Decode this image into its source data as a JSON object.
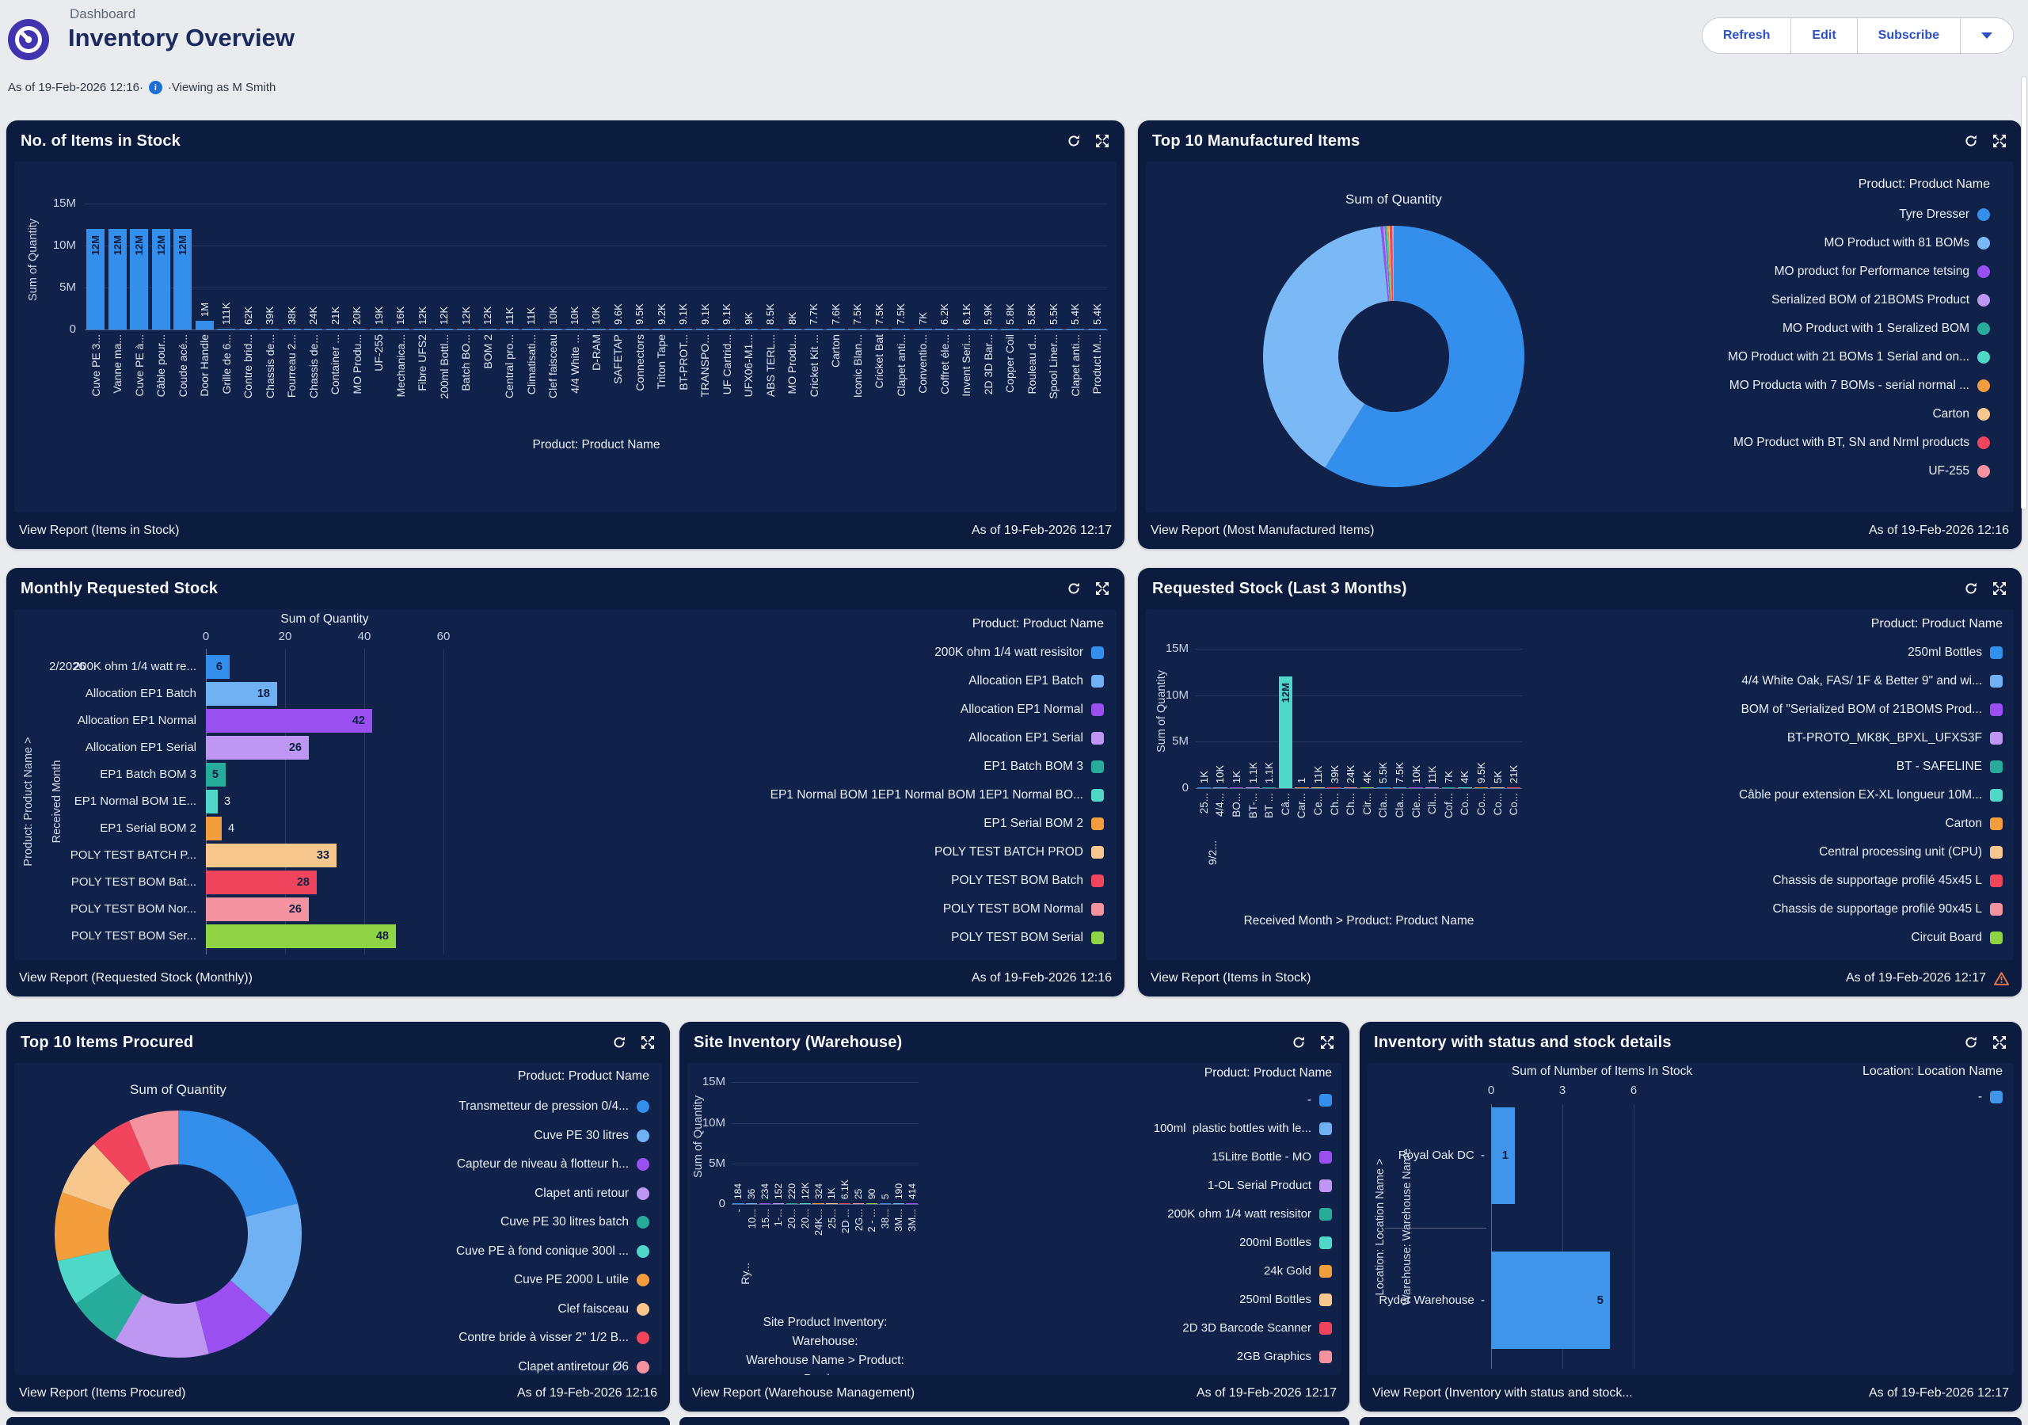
{
  "page": {
    "breadcrumb": "Dashboard",
    "title": "Inventory Overview",
    "as_of": "As of 19-Feb-2026 12:16·",
    "viewing_as": "·Viewing as M Smith",
    "buttons": {
      "refresh": "Refresh",
      "edit": "Edit",
      "subscribe": "Subscribe"
    }
  },
  "panels": [
    {
      "title": "No. of Items in Stock",
      "footer_left": "View Report (Items in Stock)",
      "footer_right": "As of 19-Feb-2026 12:17"
    },
    {
      "title": "Top 10 Manufactured Items",
      "footer_left": "View Report (Most Manufactured Items)",
      "footer_right": "As of 19-Feb-2026 12:16"
    },
    {
      "title": "Monthly Requested Stock",
      "footer_left": "View Report (Requested Stock (Monthly))",
      "footer_right": "As of 19-Feb-2026 12:16"
    },
    {
      "title": "Requested Stock (Last 3 Months)",
      "footer_left": "View Report (Items in Stock)",
      "footer_right": "As of 19-Feb-2026 12:17"
    },
    {
      "title": "Top 10 Items Procured",
      "footer_left": "View Report (Items Procured)",
      "footer_right": "As of 19-Feb-2026 12:16"
    },
    {
      "title": "Site Inventory (Warehouse)",
      "footer_left": "View Report (Warehouse Management)",
      "footer_right": "As of 19-Feb-2026 12:17"
    },
    {
      "title": "Inventory with status and stock details",
      "footer_left": "View Report (Inventory with status and stock...",
      "footer_right": "As of 19-Feb-2026 12:17"
    }
  ],
  "chart_data": [
    {
      "type": "bar",
      "orientation": "vertical",
      "title": "No. of Items in Stock",
      "ylabel": "Sum of Quantity",
      "xlabel": "Product: Product Name",
      "yticks": [
        [
          0,
          "0"
        ],
        [
          5000000,
          "5M"
        ],
        [
          10000000,
          "10M"
        ],
        [
          15000000,
          "15M"
        ]
      ],
      "ylim": [
        0,
        16200000
      ],
      "bar_color": "#338feb",
      "categories": [
        "Cuve PE 3...",
        "Vanne ma...",
        "Cuve PE à...",
        "Câble pour...",
        "Coude acé...",
        "Door Handle",
        "Grille de 6...",
        "Contre brid...",
        "Chassis de...",
        "Fourreau 2...",
        "Chassis de...",
        "Container ...",
        "MO Produ...",
        "UF-255",
        "Mechanica...",
        "Fibre UFS2",
        "200ml Bottl...",
        "Batch BO...",
        "BOM 2",
        "Central pro...",
        "Climatisati...",
        "Clef faisceau",
        "4/4 White ...",
        "D-RAM",
        "SAFETAP",
        "Connectors",
        "Triton Tape",
        "BT-PROT...",
        "TRANSPO...",
        "UF Cartrid...",
        "UFX06-M1...",
        "ABS TERL...",
        "MO Produ...",
        "Cricket Kit ...",
        "Carton",
        "Iconic Blan...",
        "Cricket Bat",
        "Clapet anti...",
        "Conventio...",
        "Coffret éle...",
        "Invent Seri...",
        "2D 3D Bar...",
        "Copper Coil",
        "Rouleau d...",
        "Spool Liner...",
        "Clapet anti...",
        "Product M..."
      ],
      "values": [
        12000000,
        12000000,
        12000000,
        12000000,
        12000000,
        1000000,
        111000,
        62000,
        39000,
        38000,
        24000,
        21000,
        20000,
        19000,
        16000,
        12000,
        12000,
        12000,
        12000,
        11000,
        11000,
        10000,
        10000,
        10000,
        9600,
        9500,
        9200,
        9100,
        9100,
        9100,
        9000,
        8500,
        8000,
        7700,
        7600,
        7500,
        7500,
        7500,
        7000,
        6200,
        6100,
        5900,
        5800,
        5800,
        5500,
        5400,
        5400
      ],
      "labels": [
        "12M",
        "12M",
        "12M",
        "12M",
        "12M",
        "1M",
        "111K",
        "62K",
        "39K",
        "38K",
        "24K",
        "21K",
        "20K",
        "19K",
        "16K",
        "12K",
        "12K",
        "12K",
        "12K",
        "11K",
        "11K",
        "10K",
        "10K",
        "10K",
        "9.6K",
        "9.5K",
        "9.2K",
        "9.1K",
        "9.1K",
        "9.1K",
        "9K",
        "8.5K",
        "8K",
        "7.7K",
        "7.6K",
        "7.5K",
        "7.5K",
        "7.5K",
        "7K",
        "6.2K",
        "6.1K",
        "5.9K",
        "5.8K",
        "5.8K",
        "5.5K",
        "5.4K",
        "5.4K"
      ]
    },
    {
      "type": "pie",
      "title": "Sum of Quantity",
      "legend_title": "Product: Product Name",
      "legend_position": "right",
      "slices": [
        {
          "label": "Tyre Dresser",
          "value": 58.8,
          "color": "#338feb"
        },
        {
          "label": "MO Product with 81 BOMs",
          "value": 39.6,
          "color": "#7ab9f5"
        },
        {
          "label": "MO product for Performance tetsing",
          "value": 0.3,
          "color": "#9a4ff0"
        },
        {
          "label": "Serialized BOM of 21BOMS Product",
          "value": 0.2,
          "color": "#bd97f2"
        },
        {
          "label": "MO Product with 1 Seralized BOM",
          "value": 0.15,
          "color": "#27ab9b"
        },
        {
          "label": "MO Product with 21 BOMs 1 Serial and on...",
          "value": 0.15,
          "color": "#4fd8c7"
        },
        {
          "label": "MO Producta with 7 BOMs - serial normal ...",
          "value": 0.15,
          "color": "#f49d3c"
        },
        {
          "label": "Carton",
          "value": 0.15,
          "color": "#f8c78e"
        },
        {
          "label": "MO Product with BT, SN and Nrml products",
          "value": 0.3,
          "color": "#f0455c"
        },
        {
          "label": "UF-255",
          "value": 0.2,
          "color": "#f492a0"
        }
      ]
    },
    {
      "type": "bar",
      "orientation": "horizontal",
      "title": "Monthly Requested Stock",
      "axis_title": "Sum of Quantity",
      "xticks": [
        0,
        20,
        40,
        60
      ],
      "xlim": [
        0,
        60
      ],
      "group_label": "2/2026",
      "ylabel_outer": "Product: Product Name  >",
      "ylabel_inner": "Received Month",
      "rows": [
        {
          "label": "200K ohm 1/4 watt re...",
          "value": 6,
          "color": "#338feb"
        },
        {
          "label": "Allocation EP1 Batch",
          "value": 18,
          "color": "#6fb1f3"
        },
        {
          "label": "Allocation EP1 Normal",
          "value": 42,
          "color": "#9a4ff0"
        },
        {
          "label": "Allocation EP1 Serial",
          "value": 26,
          "color": "#bd97f2"
        },
        {
          "label": "EP1 Batch BOM 3",
          "value": 5,
          "color": "#27ab9b"
        },
        {
          "label": "EP1 Normal BOM 1E...",
          "value": 3,
          "color": "#4fd8c7"
        },
        {
          "label": "EP1 Serial BOM 2",
          "value": 4,
          "color": "#f49d3c"
        },
        {
          "label": "POLY TEST BATCH P...",
          "value": 33,
          "color": "#f8c78e"
        },
        {
          "label": "POLY TEST BOM Bat...",
          "value": 28,
          "color": "#f0455c"
        },
        {
          "label": "POLY TEST BOM Nor...",
          "value": 26,
          "color": "#f492a0"
        },
        {
          "label": "POLY TEST BOM Ser...",
          "value": 48,
          "color": "#8ed444"
        }
      ],
      "legend_title": "Product: Product Name",
      "legend": [
        {
          "label": "200K ohm 1/4 watt resisitor",
          "color": "#338feb"
        },
        {
          "label": "Allocation EP1 Batch",
          "color": "#6fb1f3"
        },
        {
          "label": "Allocation EP1 Normal",
          "color": "#9a4ff0"
        },
        {
          "label": "Allocation EP1 Serial",
          "color": "#bd97f2"
        },
        {
          "label": "EP1 Batch BOM 3",
          "color": "#27ab9b"
        },
        {
          "label": "EP1 Normal BOM 1EP1 Normal BOM 1EP1 Normal BO...",
          "color": "#4fd8c7"
        },
        {
          "label": "EP1 Serial BOM 2",
          "color": "#f49d3c"
        },
        {
          "label": "POLY TEST BATCH PROD",
          "color": "#f8c78e"
        },
        {
          "label": "POLY TEST BOM Batch",
          "color": "#f0455c"
        },
        {
          "label": "POLY TEST BOM Normal",
          "color": "#f492a0"
        },
        {
          "label": "POLY TEST BOM Serial",
          "color": "#8ed444"
        }
      ]
    },
    {
      "type": "bar",
      "orientation": "vertical",
      "title": "Requested Stock (Last 3 Months)",
      "ylabel": "Sum of Quantity",
      "xlabel": "Received Month  >  Product: Product Name",
      "yticks": [
        [
          0,
          "0"
        ],
        [
          5000000,
          "5M"
        ],
        [
          10000000,
          "10M"
        ],
        [
          15000000,
          "15M"
        ]
      ],
      "ylim": [
        0,
        16200000
      ],
      "group_label": "9/2...",
      "palette": [
        "#338feb",
        "#6fb1f3",
        "#9a4ff0",
        "#bd97f2",
        "#27ab9b",
        "#4fd8c7",
        "#f49d3c",
        "#f8c78e",
        "#f0455c",
        "#f492a0",
        "#8ed444"
      ],
      "categories": [
        "25...",
        "4/4...",
        "BO...",
        "BT-...",
        "BT ...",
        "Câ...",
        "Car...",
        "Ce...",
        "Ch...",
        "Ch...",
        "Cir...",
        "Cla...",
        "Cla...",
        "Cle...",
        "Cli...",
        "Cof...",
        "Co...",
        "Co...",
        "Co...",
        "Co..."
      ],
      "values": [
        1000,
        10000,
        1000,
        1100,
        1100,
        12000000,
        1,
        11000,
        39000,
        24000,
        4000,
        5500,
        7500,
        10000,
        11000,
        7000,
        4000,
        9500,
        5000,
        21000
      ],
      "labels": [
        "1K",
        "10K",
        "1K",
        "1.1K",
        "1.1K",
        "12M",
        "1",
        "11K",
        "39K",
        "24K",
        "4K",
        "5.5K",
        "7.5K",
        "10K",
        "11K",
        "7K",
        "4K",
        "9.5K",
        "5K",
        "21K"
      ],
      "legend_title": "Product: Product Name",
      "legend": [
        {
          "label": "250ml Bottles",
          "color": "#338feb"
        },
        {
          "label": "4/4 White Oak, FAS/ 1F & Better 9\" and wi...",
          "color": "#6fb1f3"
        },
        {
          "label": "BOM of \"Serialized BOM of 21BOMS Prod...",
          "color": "#9a4ff0"
        },
        {
          "label": "BT-PROTO_MK8K_BPXL_UFXS3F",
          "color": "#bd97f2"
        },
        {
          "label": "BT - SAFELINE",
          "color": "#27ab9b"
        },
        {
          "label": "Câble pour extension EX-XL longueur 10M...",
          "color": "#4fd8c7"
        },
        {
          "label": "Carton",
          "color": "#f49d3c"
        },
        {
          "label": "Central processing unit (CPU)",
          "color": "#f8c78e"
        },
        {
          "label": "Chassis de supportage profilé 45x45 L",
          "color": "#f0455c"
        },
        {
          "label": "Chassis de supportage profilé 90x45 L",
          "color": "#f492a0"
        },
        {
          "label": "Circuit Board",
          "color": "#8ed444"
        }
      ],
      "warning": true
    },
    {
      "type": "pie",
      "title": "Sum of Quantity",
      "legend_title": "Product: Product Name",
      "legend_position": "right",
      "slices": [
        {
          "label": "Transmetteur de pression 0/4...",
          "value": 21,
          "color": "#338feb"
        },
        {
          "label": "Cuve PE 30 litres",
          "value": 15.5,
          "color": "#6fb1f3"
        },
        {
          "label": "Capteur de niveau à flotteur h...",
          "value": 9.5,
          "color": "#9a4ff0"
        },
        {
          "label": "Clapet anti retour",
          "value": 12.5,
          "color": "#bd97f2"
        },
        {
          "label": "Cuve PE 30 litres batch",
          "value": 7,
          "color": "#27ab9b"
        },
        {
          "label": "Cuve PE à fond conique 300l ...",
          "value": 6,
          "color": "#4fd8c7"
        },
        {
          "label": "Cuve PE 2000 L utile",
          "value": 9,
          "color": "#f49d3c"
        },
        {
          "label": "Clef faisceau",
          "value": 7.5,
          "color": "#f8c78e"
        },
        {
          "label": "Contre bride à visser 2\" 1/2 B...",
          "value": 5.5,
          "color": "#f0455c"
        },
        {
          "label": "Clapet antiretour Ø6",
          "value": 6.5,
          "color": "#f492a0"
        }
      ]
    },
    {
      "type": "bar",
      "orientation": "vertical",
      "title": "Site Inventory (Warehouse)",
      "ylabel": "Sum of Quantity",
      "xlabel": "Site Product Inventory: Warehouse:\nWarehouse Name  >  Product: Produ...",
      "yticks": [
        [
          0,
          "0"
        ],
        [
          5000000,
          "5M"
        ],
        [
          10000000,
          "10M"
        ],
        [
          15000000,
          "15M"
        ]
      ],
      "ylim": [
        0,
        16200000
      ],
      "group_label": "Ry...",
      "palette": [
        "#338feb",
        "#6fb1f3",
        "#9a4ff0",
        "#bd97f2",
        "#27ab9b",
        "#4fd8c7",
        "#f49d3c",
        "#f8c78e",
        "#f0455c",
        "#f492a0",
        "#8ed444"
      ],
      "categories": [
        "-",
        "10...",
        "15...",
        "1-...",
        "20...",
        "20...",
        "24K...",
        "25...",
        "2D ...",
        "2G...",
        "2 - ...",
        "38...",
        "3M...",
        "3M..."
      ],
      "values": [
        184,
        36,
        234,
        152,
        220,
        12000,
        324,
        1000,
        6100,
        25,
        90,
        5,
        190,
        414
      ],
      "labels": [
        "184",
        "36",
        "234",
        "152",
        "220",
        "12K",
        "324",
        "1K",
        "6.1K",
        "25",
        "90",
        "5",
        "190",
        "414"
      ],
      "legend_title": "Product: Product Name",
      "legend": [
        {
          "label": "-",
          "color": "#338feb"
        },
        {
          "label": "100ml  plastic bottles with le...",
          "color": "#6fb1f3"
        },
        {
          "label": "15Litre Bottle - MO",
          "color": "#9a4ff0"
        },
        {
          "label": "1-OL Serial Product",
          "color": "#bd97f2"
        },
        {
          "label": "200K ohm 1/4 watt resisitor",
          "color": "#27ab9b"
        },
        {
          "label": "200ml Bottles",
          "color": "#4fd8c7"
        },
        {
          "label": "24k Gold",
          "color": "#f49d3c"
        },
        {
          "label": "250ml Bottles",
          "color": "#f8c78e"
        },
        {
          "label": "2D 3D Barcode Scanner",
          "color": "#f0455c"
        },
        {
          "label": "2GB Graphics",
          "color": "#f492a0"
        },
        {
          "label": "2 - OL Serial Product 2",
          "color": "#8ed444"
        }
      ]
    },
    {
      "type": "bar",
      "orientation": "horizontal",
      "title": "Inventory with status and stock details",
      "axis_title": "Sum of Number of Items In Stock",
      "xticks": [
        0,
        3,
        6
      ],
      "xlim": [
        0,
        7.3
      ],
      "ylabel_outer": "Location: Location Name  >",
      "ylabel_inner": "Warehouse: Warehouse Name",
      "bar_color": "#3f95ea",
      "rows": [
        {
          "label": "Royal Oak DC  -",
          "value": 1
        },
        {
          "label": "Ryder Warehouse  -",
          "value": 5
        }
      ],
      "legend_title": "Location: Location Name",
      "legend": [
        {
          "label": "-",
          "color": "#3f95ea"
        }
      ]
    }
  ]
}
